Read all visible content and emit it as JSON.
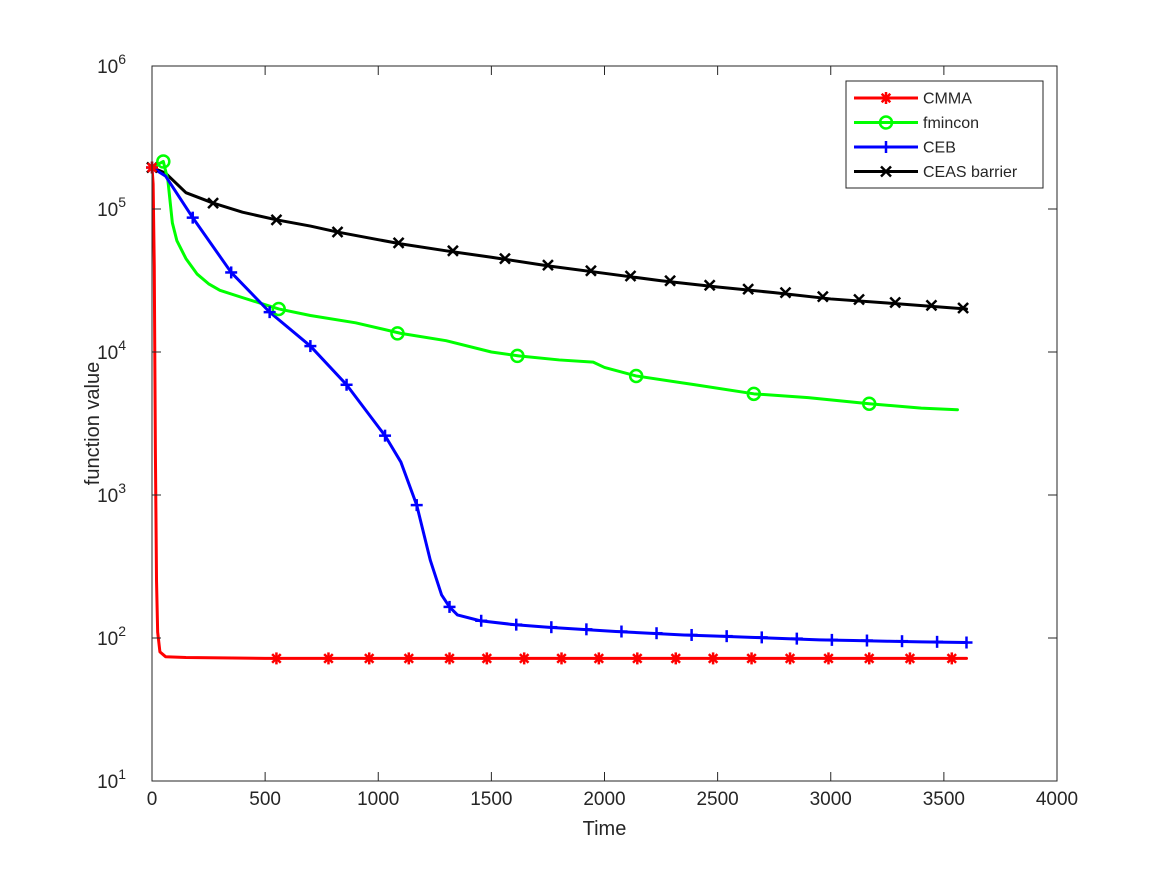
{
  "chart_data": {
    "type": "line",
    "title": "",
    "xlabel": "Time",
    "ylabel": "function value",
    "xlim": [
      0,
      4000
    ],
    "ylim": [
      10,
      1000000
    ],
    "yscale": "log",
    "grid": false,
    "legend_position": "top-right",
    "x_ticks": [
      0,
      500,
      1000,
      1500,
      2000,
      2500,
      3000,
      3500,
      4000
    ],
    "x_tick_labels": [
      "0",
      "500",
      "1000",
      "1500",
      "2000",
      "2500",
      "3000",
      "3500",
      "4000"
    ],
    "y_ticks": [
      10,
      100,
      1000,
      10000,
      100000,
      1000000
    ],
    "y_tick_labels": [
      {
        "base": "10",
        "exp": "1"
      },
      {
        "base": "10",
        "exp": "2"
      },
      {
        "base": "10",
        "exp": "3"
      },
      {
        "base": "10",
        "exp": "4"
      },
      {
        "base": "10",
        "exp": "5"
      },
      {
        "base": "10",
        "exp": "6"
      }
    ],
    "series": [
      {
        "name": "CMMA",
        "color": "#ff0000",
        "marker": "asterisk",
        "points": [
          [
            0,
            195000
          ],
          [
            5,
            150000
          ],
          [
            10,
            40000
          ],
          [
            15,
            2000
          ],
          [
            20,
            250
          ],
          [
            25,
            110
          ],
          [
            35,
            80
          ],
          [
            60,
            74
          ],
          [
            150,
            73
          ],
          [
            500,
            72
          ],
          [
            1000,
            72
          ],
          [
            2000,
            72
          ],
          [
            3000,
            72
          ],
          [
            3600,
            72
          ]
        ],
        "markers": [
          [
            0,
            195000
          ],
          [
            550,
            72
          ],
          [
            780,
            72
          ],
          [
            960,
            72
          ],
          [
            1135,
            72
          ],
          [
            1315,
            72
          ],
          [
            1480,
            72
          ],
          [
            1645,
            72
          ],
          [
            1810,
            72
          ],
          [
            1975,
            72
          ],
          [
            2145,
            72
          ],
          [
            2315,
            72
          ],
          [
            2480,
            72
          ],
          [
            2650,
            72
          ],
          [
            2820,
            72
          ],
          [
            2990,
            72
          ],
          [
            3170,
            72
          ],
          [
            3350,
            72
          ],
          [
            3535,
            72
          ]
        ]
      },
      {
        "name": "fmincon",
        "color": "#00ff00",
        "marker": "circle",
        "points": [
          [
            0,
            195000
          ],
          [
            50,
            215000
          ],
          [
            70,
            160000
          ],
          [
            90,
            80000
          ],
          [
            110,
            60000
          ],
          [
            150,
            45000
          ],
          [
            200,
            35000
          ],
          [
            250,
            30000
          ],
          [
            300,
            27000
          ],
          [
            400,
            24000
          ],
          [
            560,
            20000
          ],
          [
            700,
            18000
          ],
          [
            900,
            16000
          ],
          [
            1100,
            13500
          ],
          [
            1300,
            12000
          ],
          [
            1500,
            10000
          ],
          [
            1620,
            9400
          ],
          [
            1800,
            8800
          ],
          [
            1950,
            8500
          ],
          [
            2000,
            7800
          ],
          [
            2140,
            6800
          ],
          [
            2400,
            5900
          ],
          [
            2660,
            5100
          ],
          [
            2900,
            4800
          ],
          [
            3170,
            4350
          ],
          [
            3400,
            4050
          ],
          [
            3560,
            3950
          ]
        ],
        "markers": [
          [
            50,
            215000
          ],
          [
            560,
            20000
          ],
          [
            1085,
            13500
          ],
          [
            1615,
            9400
          ],
          [
            2140,
            6800
          ],
          [
            2660,
            5100
          ],
          [
            3170,
            4350
          ]
        ]
      },
      {
        "name": "CEB",
        "color": "#0000ff",
        "marker": "plus",
        "points": [
          [
            0,
            195000
          ],
          [
            60,
            170000
          ],
          [
            180,
            87000
          ],
          [
            350,
            36000
          ],
          [
            520,
            19000
          ],
          [
            700,
            11000
          ],
          [
            860,
            5900
          ],
          [
            1000,
            3000
          ],
          [
            1030,
            2600
          ],
          [
            1100,
            1700
          ],
          [
            1170,
            850
          ],
          [
            1230,
            350
          ],
          [
            1280,
            200
          ],
          [
            1315,
            165
          ],
          [
            1350,
            145
          ],
          [
            1450,
            132
          ],
          [
            1600,
            124
          ],
          [
            1750,
            119
          ],
          [
            1900,
            115
          ],
          [
            2050,
            111
          ],
          [
            2200,
            108
          ],
          [
            2350,
            105
          ],
          [
            2500,
            103
          ],
          [
            2650,
            101
          ],
          [
            2800,
            99
          ],
          [
            2950,
            97
          ],
          [
            3100,
            96
          ],
          [
            3250,
            95
          ],
          [
            3400,
            94
          ],
          [
            3600,
            93
          ]
        ],
        "markers": [
          [
            0,
            195000
          ],
          [
            180,
            87000
          ],
          [
            350,
            36000
          ],
          [
            520,
            19000
          ],
          [
            700,
            11000
          ],
          [
            860,
            5900
          ],
          [
            1030,
            2600
          ],
          [
            1170,
            850
          ],
          [
            1315,
            165
          ],
          [
            1455,
            132
          ],
          [
            1610,
            124
          ],
          [
            1765,
            119
          ],
          [
            1920,
            115
          ],
          [
            2075,
            111
          ],
          [
            2230,
            108
          ],
          [
            2385,
            105
          ],
          [
            2540,
            103
          ],
          [
            2695,
            101
          ],
          [
            2850,
            99
          ],
          [
            3005,
            97
          ],
          [
            3160,
            96
          ],
          [
            3315,
            95
          ],
          [
            3470,
            94
          ],
          [
            3600,
            93
          ]
        ]
      },
      {
        "name": "CEAS barrier",
        "color": "#000000",
        "marker": "x",
        "points": [
          [
            0,
            195000
          ],
          [
            60,
            178000
          ],
          [
            100,
            155000
          ],
          [
            150,
            130000
          ],
          [
            270,
            110000
          ],
          [
            400,
            95000
          ],
          [
            550,
            84000
          ],
          [
            700,
            76000
          ],
          [
            820,
            69000
          ],
          [
            1000,
            61000
          ],
          [
            1100,
            57000
          ],
          [
            1300,
            51000
          ],
          [
            1500,
            46000
          ],
          [
            1750,
            40000
          ],
          [
            2000,
            35500
          ],
          [
            2250,
            31500
          ],
          [
            2500,
            28500
          ],
          [
            2750,
            26000
          ],
          [
            3000,
            23500
          ],
          [
            3250,
            22000
          ],
          [
            3600,
            20000
          ]
        ],
        "markers": [
          [
            0,
            195000
          ],
          [
            270,
            110000
          ],
          [
            550,
            84000
          ],
          [
            820,
            69000
          ],
          [
            1090,
            58000
          ],
          [
            1330,
            51000
          ],
          [
            1560,
            45000
          ],
          [
            1750,
            40500
          ],
          [
            1940,
            37000
          ],
          [
            2115,
            34000
          ],
          [
            2290,
            31500
          ],
          [
            2465,
            29300
          ],
          [
            2635,
            27500
          ],
          [
            2800,
            26000
          ],
          [
            2965,
            24400
          ],
          [
            3125,
            23300
          ],
          [
            3285,
            22200
          ],
          [
            3445,
            21200
          ],
          [
            3585,
            20300
          ]
        ]
      }
    ]
  }
}
